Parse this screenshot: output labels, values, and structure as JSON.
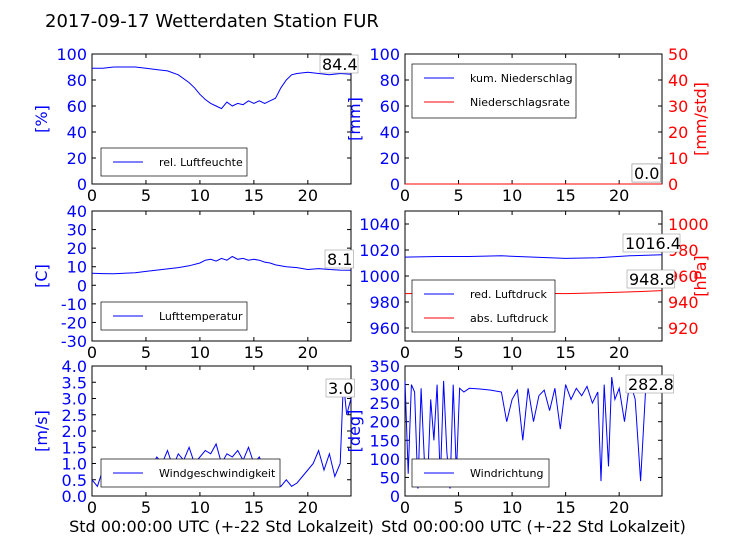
{
  "title": "2017-09-17 Wetterdaten Station FUR\u0003",
  "colors": {
    "blue": "#0000ff",
    "red": "#ff0000",
    "black": "#000000"
  },
  "chart_data": [
    {
      "id": "p1",
      "type": "line",
      "xlim": [
        0,
        24
      ],
      "ylim": [
        0,
        100
      ],
      "xticks": [
        "0",
        "5",
        "10",
        "15",
        "20"
      ],
      "yticks": [
        "0",
        "20",
        "40",
        "60",
        "80",
        "100"
      ],
      "ylabel": "[%]",
      "value_label": "84.4",
      "series": [
        {
          "name": "rel. Luftfeuchte",
          "color": "#0000ff",
          "x": [
            0,
            1,
            2,
            3,
            4,
            5,
            6,
            7,
            8,
            9,
            9.5,
            10,
            10.5,
            11,
            11.5,
            12,
            12.5,
            13,
            13.5,
            14,
            14.5,
            15,
            15.5,
            16,
            16.5,
            17,
            17.5,
            18,
            18.5,
            19,
            20,
            21,
            22,
            23,
            24
          ],
          "y": [
            89,
            89,
            90,
            90,
            90,
            89,
            88,
            87,
            84,
            78,
            74,
            69,
            65,
            62,
            60,
            58,
            63,
            60,
            62,
            61,
            64,
            62,
            64,
            62,
            64,
            66,
            74,
            80,
            84,
            85,
            86,
            85,
            84,
            85,
            84.4
          ]
        }
      ]
    },
    {
      "id": "p2",
      "type": "line",
      "xlim": [
        0,
        24
      ],
      "ylim": [
        0,
        100
      ],
      "y2lim": [
        0,
        50
      ],
      "xticks": [
        "0",
        "5",
        "10",
        "15",
        "20"
      ],
      "yticks": [
        "0",
        "20",
        "40",
        "60",
        "80",
        "100"
      ],
      "y2ticks": [
        "0",
        "10",
        "20",
        "30",
        "40",
        "50"
      ],
      "ylabel": "[mm]",
      "y2label": "[mm/std]",
      "value_labels": [
        "0.0",
        "0.0"
      ],
      "series": [
        {
          "name": "kum. Niederschlag",
          "color": "#0000ff",
          "x": [
            0,
            24
          ],
          "y": [
            0,
            0
          ]
        },
        {
          "name": "Niederschlagsrate",
          "color": "#ff0000",
          "x": [
            0,
            24
          ],
          "y": [
            0,
            0
          ]
        }
      ]
    },
    {
      "id": "p3",
      "type": "line",
      "xlim": [
        0,
        24
      ],
      "ylim": [
        -30,
        40
      ],
      "xticks": [
        "0",
        "5",
        "10",
        "15",
        "20"
      ],
      "yticks": [
        "-30",
        "-20",
        "-10",
        "0",
        "10",
        "20",
        "30",
        "40"
      ],
      "ylabel": "[C]",
      "value_label": "8.1",
      "series": [
        {
          "name": "Lufttemperatur",
          "color": "#0000ff",
          "x": [
            0,
            1,
            2,
            3,
            4,
            5,
            6,
            7,
            8,
            9,
            10,
            10.5,
            11,
            11.5,
            12,
            12.5,
            13,
            13.5,
            14,
            14.5,
            15,
            15.5,
            16,
            16.5,
            17,
            18,
            19,
            20,
            21,
            22,
            23,
            24
          ],
          "y": [
            6.5,
            6.3,
            6.2,
            6.5,
            6.8,
            7.5,
            8.2,
            8.8,
            9.5,
            10.5,
            12,
            13.5,
            14,
            13,
            14.5,
            13.5,
            15.5,
            14,
            14.5,
            13.5,
            14,
            13.5,
            12.5,
            12,
            11,
            10,
            9.5,
            8.5,
            9,
            8.5,
            8.2,
            8.1
          ]
        }
      ]
    },
    {
      "id": "p4",
      "type": "line",
      "xlim": [
        0,
        24
      ],
      "ylim": [
        950,
        1050
      ],
      "y2lim": [
        910,
        1010
      ],
      "xticks": [
        "0",
        "5",
        "10",
        "15",
        "20"
      ],
      "yticks": [
        "960",
        "980",
        "1000",
        "1020",
        "1040"
      ],
      "y2ticks": [
        "920",
        "940",
        "960",
        "980",
        "1000"
      ],
      "y2label": "[hPa]",
      "value_labels": [
        "1016.4",
        "948.8"
      ],
      "series": [
        {
          "name": "red. Luftdruck",
          "color": "#0000ff",
          "x": [
            0,
            3,
            6,
            9,
            12,
            15,
            18,
            21,
            24
          ],
          "y": [
            1014.5,
            1015,
            1015,
            1015.5,
            1014.5,
            1013.5,
            1014,
            1015.5,
            1016.4
          ]
        },
        {
          "name": "abs. Luftdruck",
          "color": "#ff0000",
          "x": [
            0,
            3,
            6,
            9,
            12,
            15,
            18,
            21,
            24
          ],
          "y": [
            946.5,
            946.8,
            946.8,
            947,
            946.8,
            946.5,
            947,
            947.8,
            948.8
          ]
        }
      ]
    },
    {
      "id": "p5",
      "type": "line",
      "xlim": [
        0,
        24
      ],
      "ylim": [
        0,
        4
      ],
      "xticks": [
        "0",
        "5",
        "10",
        "15",
        "20"
      ],
      "yticks": [
        "0.0",
        "0.5",
        "1.0",
        "1.5",
        "2.0",
        "2.5",
        "3.0",
        "3.5",
        "4.0"
      ],
      "ylabel": "[m/s]",
      "xlabel": "Std 00:00:00 UTC (+-22 Std Lokalzeit)",
      "value_label": "3.0",
      "series": [
        {
          "name": "Windgeschwindigkeit",
          "color": "#0000ff",
          "x": [
            0,
            0.5,
            1,
            1.5,
            2,
            2.5,
            3,
            3.5,
            4,
            4.5,
            5,
            5.5,
            6,
            6.5,
            7,
            7.5,
            8,
            8.5,
            9,
            9.5,
            10,
            10.5,
            11,
            11.5,
            12,
            12.5,
            13,
            13.5,
            14,
            14.5,
            15,
            15.5,
            16,
            16.5,
            17,
            17.5,
            18,
            18.5,
            19,
            19.5,
            20,
            20.5,
            21,
            21.5,
            22,
            22.5,
            23,
            23.3,
            23.6,
            24
          ],
          "y": [
            0.5,
            0.3,
            0.8,
            0.4,
            0.9,
            0.6,
            0.5,
            0.7,
            0.4,
            1.0,
            0.6,
            0.9,
            1.2,
            1.0,
            1.4,
            0.9,
            1.3,
            1.1,
            1.5,
            1.0,
            1.2,
            1.4,
            1.3,
            1.6,
            1.0,
            1.3,
            1.2,
            1.4,
            1.1,
            1.5,
            1.0,
            1.2,
            0.8,
            0.5,
            0.4,
            0.3,
            0.5,
            0.3,
            0.4,
            0.6,
            0.8,
            1.0,
            1.4,
            0.8,
            1.3,
            0.6,
            1.0,
            3.5,
            2.5,
            3.0
          ]
        }
      ]
    },
    {
      "id": "p6",
      "type": "line",
      "xlim": [
        0,
        24
      ],
      "ylim": [
        0,
        350
      ],
      "xticks": [
        "0",
        "5",
        "10",
        "15",
        "20"
      ],
      "yticks": [
        "0",
        "50",
        "100",
        "150",
        "200",
        "250",
        "300",
        "350"
      ],
      "ylabel": "[deg]",
      "xlabel": "Std 00:00:00 UTC (+-22 Std Lokalzeit)",
      "value_label": "282.8",
      "series": [
        {
          "name": "Windrichtung",
          "color": "#0000ff",
          "x": [
            0,
            0.3,
            0.6,
            0.9,
            1.2,
            1.5,
            1.8,
            2.1,
            2.4,
            2.7,
            3,
            3.3,
            3.6,
            3.9,
            4.2,
            4.5,
            4.8,
            5.1,
            5.5,
            6,
            7,
            8,
            9,
            9.5,
            10,
            10.5,
            11,
            11.5,
            12,
            12.5,
            13,
            13.5,
            14,
            14.5,
            15,
            15.5,
            16,
            16.5,
            17,
            17.5,
            18,
            18.3,
            18.6,
            19,
            19.3,
            19.6,
            20,
            20.5,
            21,
            21.5,
            22,
            22.5,
            23,
            23.5,
            24
          ],
          "y": [
            310,
            60,
            300,
            280,
            20,
            290,
            100,
            30,
            260,
            150,
            300,
            40,
            310,
            120,
            20,
            300,
            60,
            290,
            280,
            290,
            288,
            285,
            280,
            200,
            260,
            285,
            150,
            290,
            200,
            270,
            285,
            230,
            290,
            180,
            300,
            260,
            290,
            270,
            295,
            250,
            280,
            40,
            300,
            80,
            320,
            260,
            290,
            200,
            310,
            260,
            40,
            300,
            280,
            290,
            282.8
          ]
        }
      ]
    }
  ]
}
